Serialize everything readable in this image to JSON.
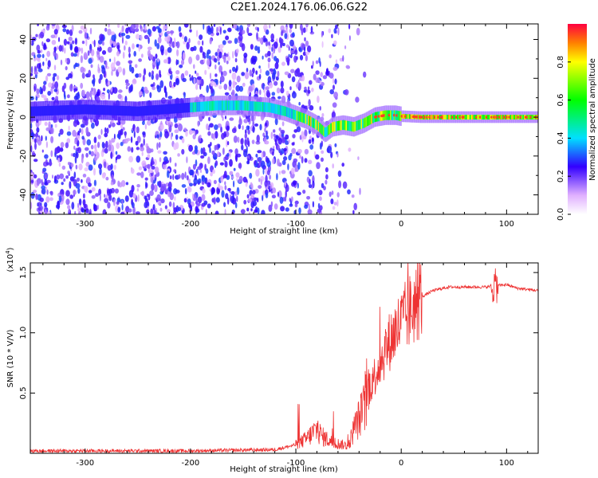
{
  "title": "C2E1.2024.176.06.06.G22",
  "colors": {
    "snr_line": "#ee3333",
    "axis": "#000000"
  },
  "chart_data": [
    {
      "type": "heatmap",
      "xlabel": "Height of straight line (km)",
      "ylabel": "Frequency (Hz)",
      "xlim": [
        -352,
        130
      ],
      "ylim": [
        -50,
        48
      ],
      "xticks": [
        -300,
        -200,
        -100,
        0,
        100
      ],
      "yticks": [
        -40,
        -20,
        0,
        20,
        40
      ],
      "colorbar": {
        "label": "Normalized spectral amplitude",
        "range": [
          0,
          1
        ],
        "ticks": [
          "0.0",
          "0.2",
          "0.4",
          "0.6",
          "0.8"
        ]
      },
      "ridge": {
        "x": [
          -350,
          -300,
          -250,
          -200,
          -175,
          -150,
          -125,
          -110,
          -100,
          -90,
          -80,
          -72,
          -65,
          -55,
          -45,
          -35,
          -25,
          -15,
          -5,
          0,
          20,
          50,
          80,
          100,
          130
        ],
        "y": [
          3,
          4,
          3,
          5,
          6,
          6,
          5,
          3,
          1,
          -1,
          -4,
          -8,
          -5,
          -4,
          -5,
          -3,
          0,
          1,
          1,
          0.5,
          0,
          0,
          0,
          0,
          0
        ]
      }
    },
    {
      "type": "line",
      "xlabel": "Height of straight line (km)",
      "ylabel": "SNR (10 * V/V)",
      "scale_label": "(x10",
      "scale_exp": "4",
      "scale_close": ")",
      "xlim": [
        -352,
        130
      ],
      "ylim": [
        0,
        1.58
      ],
      "xticks": [
        -300,
        -200,
        -100,
        0,
        100
      ],
      "yticks": [
        "0.5",
        "1.0",
        "1.5"
      ],
      "envelope": {
        "x": [
          -352,
          -200,
          -120,
          -100,
          -90,
          -80,
          -75,
          -65,
          -55,
          -50,
          -45,
          -35,
          -30,
          -25,
          -15,
          -10,
          -5,
          0,
          10,
          20,
          30,
          45,
          60,
          80,
          100,
          110,
          130
        ],
        "y": [
          0.02,
          0.02,
          0.03,
          0.07,
          0.12,
          0.2,
          0.14,
          0.09,
          0.07,
          0.06,
          0.2,
          0.38,
          0.55,
          0.65,
          0.85,
          0.95,
          1.02,
          1.08,
          1.2,
          1.3,
          1.35,
          1.38,
          1.38,
          1.38,
          1.4,
          1.37,
          1.35
        ]
      }
    }
  ]
}
